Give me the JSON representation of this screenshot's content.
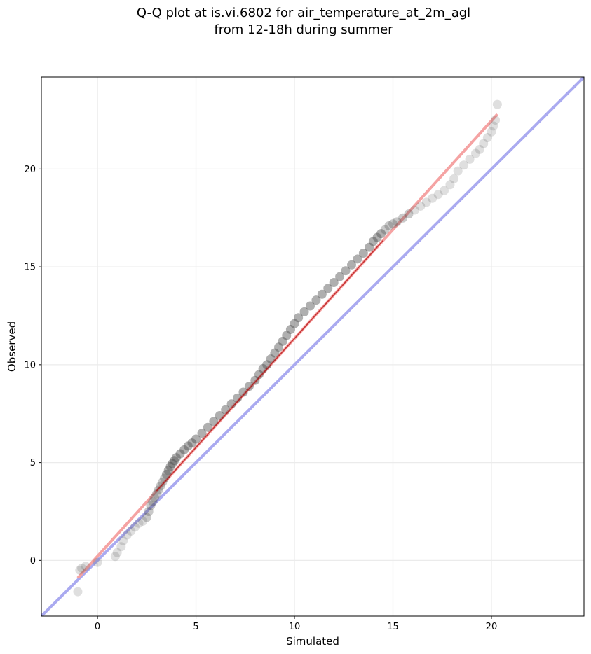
{
  "chart_data": {
    "type": "scatter",
    "title_lines": [
      "Q-Q plot at is.vi.6802 for air_temperature_at_2m_agl",
      "from 12-18h during summer"
    ],
    "xlabel": "Simulated",
    "ylabel": "Observed",
    "xlim": [
      -2.85,
      24.7
    ],
    "ylim": [
      -2.85,
      24.7
    ],
    "xticks": [
      0,
      5,
      10,
      15,
      20
    ],
    "yticks": [
      0,
      5,
      10,
      15,
      20
    ],
    "grid": true,
    "legend": "none",
    "colors": {
      "points": "#4d4d4d",
      "identity_line": "#aaaaf0",
      "fit_line": "#f5a3a3",
      "fit_line_core": "#b00000"
    },
    "identity_line": {
      "from": [
        -2.85,
        -2.85
      ],
      "to": [
        24.7,
        24.7
      ]
    },
    "fit_line": {
      "from": [
        -1.0,
        -0.9
      ],
      "to": [
        20.3,
        22.8
      ]
    },
    "quantiles": {
      "x": [
        -1.0,
        -0.9,
        -0.8,
        -0.6,
        0.0,
        0.9,
        1.0,
        1.2,
        1.3,
        1.5,
        1.7,
        1.9,
        2.1,
        2.3,
        2.5,
        2.6,
        2.7,
        2.8,
        2.9,
        3.0,
        3.1,
        3.2,
        3.3,
        3.4,
        3.5,
        3.6,
        3.7,
        3.8,
        3.9,
        4.0,
        4.2,
        4.4,
        4.6,
        4.8,
        5.0,
        5.3,
        5.6,
        5.9,
        6.2,
        6.5,
        6.8,
        7.1,
        7.4,
        7.7,
        8.0,
        8.2,
        8.4,
        8.6,
        8.8,
        9.0,
        9.2,
        9.4,
        9.6,
        9.8,
        10.0,
        10.2,
        10.5,
        10.8,
        11.1,
        11.4,
        11.7,
        12.0,
        12.3,
        12.6,
        12.9,
        13.2,
        13.5,
        13.8,
        14.0,
        14.2,
        14.4,
        14.6,
        14.8,
        15.0,
        15.2,
        15.5,
        15.8,
        16.1,
        16.4,
        16.7,
        17.0,
        17.3,
        17.6,
        17.9,
        18.1,
        18.3,
        18.6,
        18.9,
        19.2,
        19.4,
        19.6,
        19.8,
        20.0,
        20.1,
        20.2,
        20.3
      ],
      "y": [
        -1.6,
        -0.5,
        -0.4,
        -0.3,
        -0.1,
        0.2,
        0.4,
        0.7,
        1.0,
        1.3,
        1.5,
        1.7,
        1.9,
        2.0,
        2.2,
        2.5,
        2.8,
        3.0,
        3.2,
        3.4,
        3.6,
        3.8,
        4.0,
        4.2,
        4.4,
        4.6,
        4.8,
        4.95,
        5.1,
        5.25,
        5.45,
        5.65,
        5.85,
        6.0,
        6.2,
        6.5,
        6.8,
        7.1,
        7.4,
        7.7,
        8.0,
        8.3,
        8.6,
        8.9,
        9.2,
        9.5,
        9.8,
        10.0,
        10.3,
        10.6,
        10.9,
        11.2,
        11.5,
        11.8,
        12.1,
        12.4,
        12.7,
        13.0,
        13.3,
        13.6,
        13.9,
        14.2,
        14.5,
        14.8,
        15.1,
        15.4,
        15.7,
        16.0,
        16.3,
        16.5,
        16.7,
        16.9,
        17.1,
        17.2,
        17.3,
        17.5,
        17.7,
        17.9,
        18.1,
        18.3,
        18.5,
        18.7,
        18.9,
        19.2,
        19.5,
        19.9,
        20.2,
        20.5,
        20.8,
        21.0,
        21.3,
        21.6,
        21.9,
        22.2,
        22.5,
        23.3
      ]
    }
  }
}
